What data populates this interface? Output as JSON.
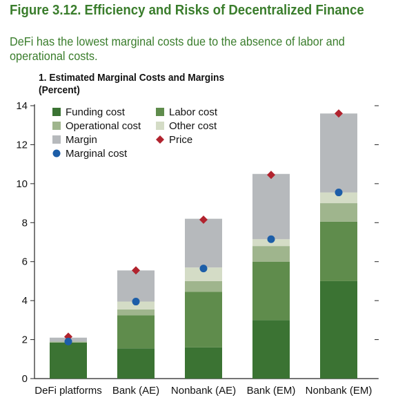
{
  "figure": {
    "title": "Figure 3.12. Efficiency and Risks of Decentralized Finance",
    "subtitle": "DeFi has the lowest marginal costs due to the absence of labor and operational costs."
  },
  "panel": {
    "title": "1. Estimated Marginal Costs and Margins",
    "unit": "(Percent)"
  },
  "colors": {
    "funding": "#3b7333",
    "labor": "#5f8c4c",
    "operational": "#9fb58d",
    "other": "#d4dcc6",
    "margin": "#b6b9bc",
    "price": "#b1232e",
    "marginal": "#1d5ea8"
  },
  "chart_data": {
    "type": "bar",
    "stacked": true,
    "categories": [
      "DeFi platforms",
      "Bank (AE)",
      "Nonbank (AE)",
      "Bank (EM)",
      "Nonbank (EM)"
    ],
    "ylim": [
      0,
      14
    ],
    "yticks": [
      0,
      2,
      4,
      6,
      8,
      10,
      12,
      14
    ],
    "grid": false,
    "legend_position": "top-left",
    "legend": [
      {
        "key": "funding",
        "label": "Funding cost",
        "shape": "square"
      },
      {
        "key": "labor",
        "label": "Labor cost",
        "shape": "square"
      },
      {
        "key": "operational",
        "label": "Operational cost",
        "shape": "square"
      },
      {
        "key": "other",
        "label": "Other cost",
        "shape": "square"
      },
      {
        "key": "margin",
        "label": "Margin",
        "shape": "square"
      },
      {
        "key": "price",
        "label": "Price",
        "shape": "diamond"
      },
      {
        "key": "marginal",
        "label": "Marginal cost",
        "shape": "circle"
      }
    ],
    "series": [
      {
        "key": "funding",
        "name": "Funding cost",
        "values": [
          1.85,
          1.55,
          1.6,
          3.0,
          5.0
        ]
      },
      {
        "key": "labor",
        "name": "Labor cost",
        "values": [
          0.0,
          1.7,
          2.85,
          3.0,
          3.05
        ]
      },
      {
        "key": "operational",
        "name": "Operational cost",
        "values": [
          0.05,
          0.3,
          0.55,
          0.8,
          0.95
        ]
      },
      {
        "key": "other",
        "name": "Other cost",
        "values": [
          0.0,
          0.4,
          0.7,
          0.35,
          0.55
        ]
      },
      {
        "key": "margin",
        "name": "Margin",
        "values": [
          0.2,
          1.6,
          2.5,
          3.35,
          4.05
        ]
      }
    ],
    "markers": [
      {
        "key": "price",
        "name": "Price",
        "values": [
          2.15,
          5.55,
          8.15,
          10.45,
          13.6
        ]
      },
      {
        "key": "marginal",
        "name": "Marginal cost",
        "values": [
          1.9,
          3.95,
          5.65,
          7.15,
          9.55
        ]
      }
    ]
  }
}
